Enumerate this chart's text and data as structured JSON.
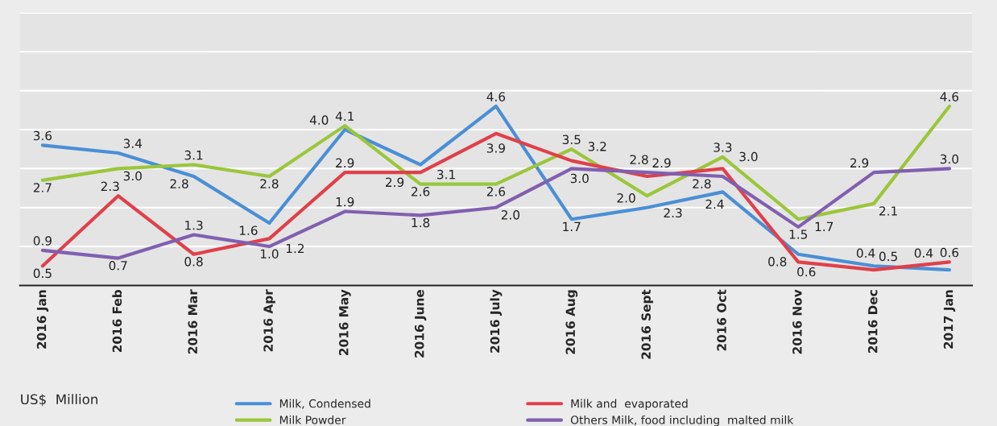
{
  "chart_data": {
    "type": "line",
    "categories": [
      "2016 Jan",
      "2016 Feb",
      "2016 Mar",
      "2016 Apr",
      "2016 May",
      "2016 June",
      "2016 July",
      "2016 Aug",
      "2016 Sept",
      "2016 Oct",
      "2016 Nov",
      "2016 Dec",
      "2017 Jan"
    ],
    "series": [
      {
        "name": "Milk, Condensed",
        "color": "#4a8fd6",
        "values": [
          3.6,
          3.4,
          2.8,
          1.6,
          4.0,
          3.1,
          4.6,
          1.7,
          2.0,
          2.4,
          0.8,
          0.5,
          0.4
        ],
        "value_labels": [
          "3.6",
          "3.4",
          "2.8",
          "1.6",
          "4.0",
          "3.1",
          "4.6",
          "1.7",
          "2.0",
          "2.4",
          "0.8",
          "0.5",
          "0.4"
        ]
      },
      {
        "name": "Milk Powder",
        "color": "#9bc63b",
        "values": [
          2.7,
          3.0,
          3.1,
          2.8,
          4.1,
          2.6,
          2.6,
          3.5,
          2.3,
          3.3,
          1.7,
          2.1,
          4.6
        ],
        "value_labels": [
          "2.7",
          "3.0",
          "3.1",
          "2.8",
          "4.1",
          "2.6",
          "2.6",
          "3.5",
          "2.3",
          "3.3",
          "1.7",
          "2.1",
          "4.6"
        ]
      },
      {
        "name": "Milk and  evaporated",
        "color": "#e0404a",
        "values": [
          0.5,
          2.3,
          0.8,
          1.2,
          2.9,
          2.9,
          3.9,
          3.2,
          2.8,
          3.0,
          0.6,
          0.4,
          0.6
        ],
        "value_labels": [
          "0.5",
          "2.3",
          "0.8",
          "1.2",
          "2.9",
          "2.9",
          "3.9",
          "3.2",
          "2.8",
          "3.0",
          "0.6",
          "0.4",
          "0.6"
        ]
      },
      {
        "name": "Others Milk, food including  malted milk",
        "color": "#8060b0",
        "values": [
          0.9,
          0.7,
          1.3,
          1.0,
          1.9,
          1.8,
          2.0,
          3.0,
          2.9,
          2.8,
          1.5,
          2.9,
          3.0
        ],
        "value_labels": [
          "0.9",
          "0.7",
          "1.3",
          "1.0",
          "1.9",
          "1.8",
          "2.0",
          "3.0",
          "2.9",
          "2.8",
          "1.5",
          "2.9",
          "3.0"
        ]
      }
    ],
    "ylim": [
      0,
      7
    ],
    "yticks": [
      {
        "value": 0,
        "label": null
      },
      {
        "value": 1,
        "label": null
      },
      {
        "value": 2,
        "label": null
      },
      {
        "value": 3,
        "label": null
      },
      {
        "value": 4,
        "label": null
      },
      {
        "value": 5,
        "label": null
      },
      {
        "value": 6,
        "label": null
      },
      {
        "value": 7,
        "label": null
      }
    ],
    "tick_labels": "x",
    "grid": "y",
    "legend": "bottom",
    "annotations": [
      "US$  Million"
    ]
  }
}
